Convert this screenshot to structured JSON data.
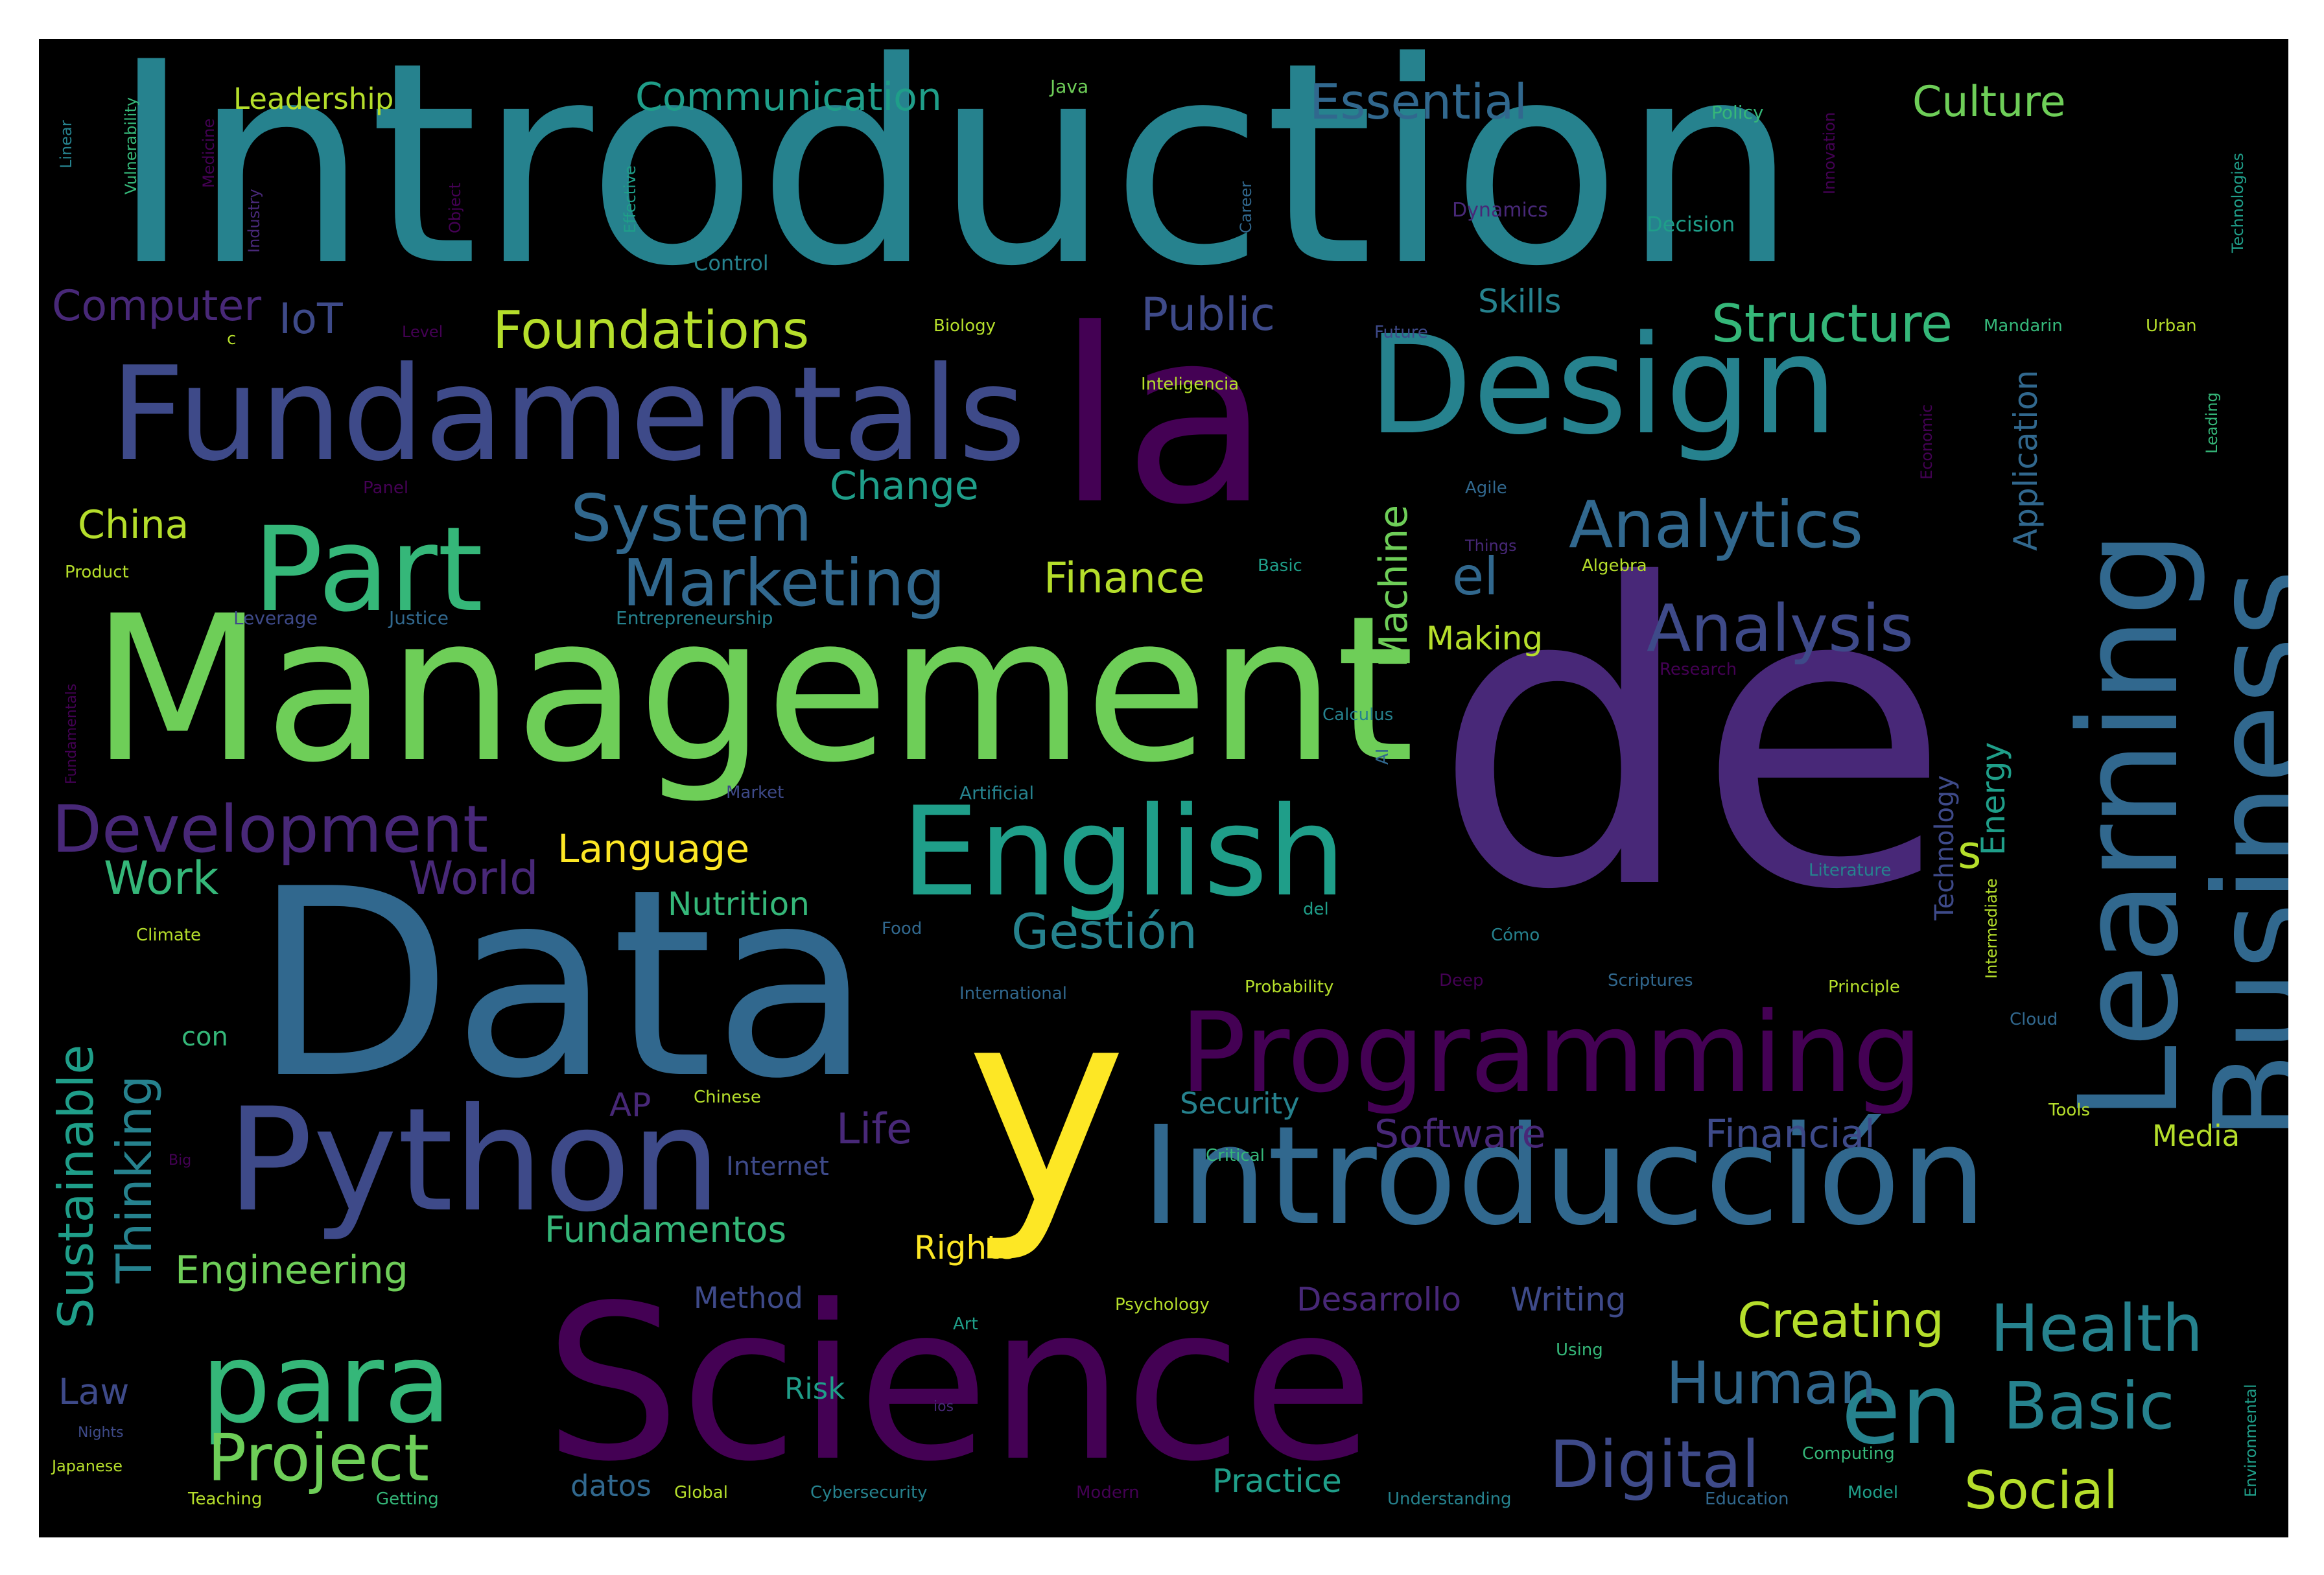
{
  "cloud": {
    "background": "#000000",
    "palette": [
      "#440154",
      "#482878",
      "#3e4a89",
      "#31688e",
      "#26828e",
      "#1f9e89",
      "#35b779",
      "#6ece58",
      "#b5de2b",
      "#fde725"
    ],
    "words": {
      "introduction": "Introduction",
      "de": "de",
      "data": "Data",
      "management": "Management",
      "science": "Science",
      "la": "la",
      "y": "y",
      "design": "Design",
      "fundamentals": "Fundamentals",
      "learning": "Learning",
      "business": "Business",
      "introduccion": "Introducción",
      "python": "Python",
      "programming": "Programming",
      "english": "English",
      "part": "Part",
      "para": "para",
      "en": "en",
      "analytics": "Analytics",
      "marketing": "Marketing",
      "development": "Development",
      "system": "System",
      "analysis": "Analysis",
      "foundations": "Foundations",
      "structure": "Structure",
      "project": "Project",
      "digital": "Digital",
      "health": "Health",
      "basic": "Basic",
      "human": "Human",
      "social": "Social",
      "creating": "Creating",
      "essential": "Essential",
      "communication": "Communication",
      "culture": "Culture",
      "leadership": "Leadership",
      "computer": "Computer",
      "iot": "IoT",
      "public": "Public",
      "skills": "Skills",
      "china": "China",
      "change": "Change",
      "finance": "Finance",
      "el": "el",
      "machine": "Machine",
      "making": "Making",
      "work": "Work",
      "language": "Language",
      "world": "World",
      "nutrition": "Nutrition",
      "gestion": "Gestión",
      "sustainable": "Sustainable",
      "thinking": "Thinking",
      "engineering": "Engineering",
      "fundamentos": "Fundamentos",
      "rights": "Rights",
      "software": "Software",
      "financial": "Financial",
      "media": "Media",
      "security": "Security",
      "life": "Life",
      "internet": "Internet",
      "ap": "AP",
      "method": "Method",
      "desarrollo": "Desarrollo",
      "writing": "Writing",
      "law": "Law",
      "risk": "Risk",
      "practice": "Practice",
      "datos": "datos",
      "energy": "Energy",
      "technology": "Technology",
      "application": "Application",
      "s": "s",
      "con": "con",
      "java": "Java",
      "policy": "Policy",
      "decision": "Decision",
      "control": "Control",
      "dynamics": "Dynamics",
      "mandarin": "Mandarin",
      "urban": "Urban",
      "biology": "Biology",
      "future": "Future",
      "level": "Level",
      "inteligencia": "Inteligencia",
      "agile": "Agile",
      "things": "Things",
      "algebra": "Algebra",
      "basic_small": "Basic",
      "product": "Product",
      "leverage": "Leverage",
      "justice": "Justice",
      "entrepreneurship": "Entrepreneurship",
      "research": "Research",
      "calculus": "Calculus",
      "market": "Market",
      "artificial": "Artificial",
      "literature": "Literature",
      "climate": "Climate",
      "food": "Food",
      "del": "del",
      "cmo": "Cómo",
      "international": "International",
      "probability": "Probability",
      "deep": "Deep",
      "scriptures": "Scriptures",
      "principle": "Principle",
      "cloud": "Cloud",
      "chinese": "Chinese",
      "critical": "Critical",
      "tools": "Tools",
      "psychology": "Psychology",
      "art": "Art",
      "using": "Using",
      "global": "Global",
      "cybersecurity": "Cybersecurity",
      "modern": "Modern",
      "understanding": "Understanding",
      "education": "Education",
      "model": "Model",
      "computing": "Computing",
      "teaching": "Teaching",
      "getting": "Getting",
      "japanese": "Japanese",
      "nights": "Nights",
      "ios": "ios",
      "c": "c",
      "ai": "AI",
      "panel": "Panel",
      "linear": "Linear",
      "vulnerability": "Vulnerability",
      "medicine": "Medicine",
      "industry": "Industry",
      "object": "Object",
      "effective": "Effective",
      "innovation": "Innovation",
      "career": "Career",
      "technologies": "Technologies",
      "economic": "Economic",
      "leading": "Leading",
      "environmental": "Environmental",
      "intermediate": "Intermediate",
      "fundamentals_small": "Fundamentals",
      "big": "Big"
    }
  }
}
